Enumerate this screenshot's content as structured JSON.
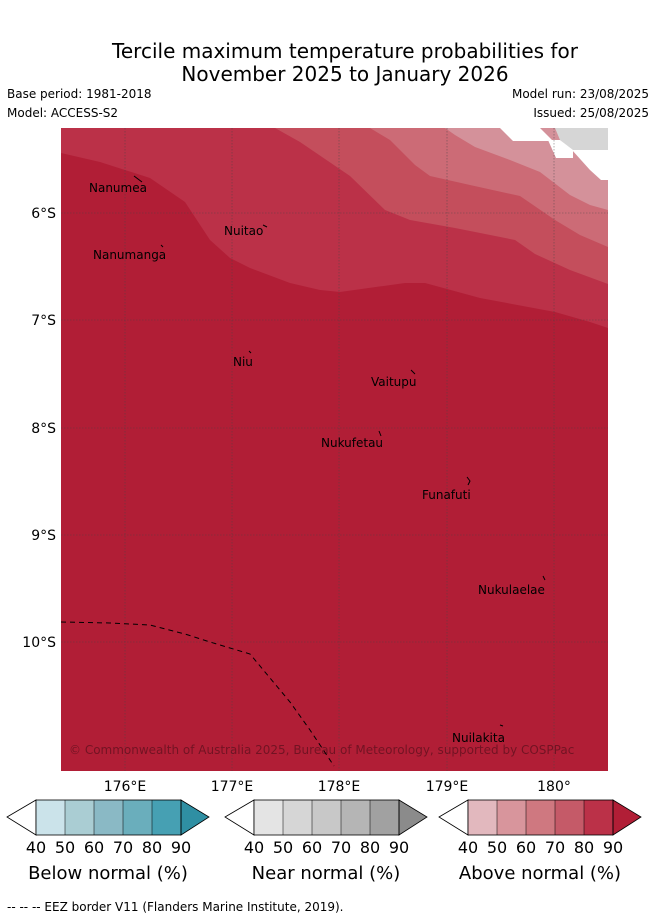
{
  "title": {
    "line1": "Tercile maximum temperature probabilities for",
    "line2": "November 2025 to January 2026"
  },
  "meta": {
    "base_period": "Base period: 1981-2018",
    "model": "Model: ACCESS-S2",
    "model_run": "Model run: 23/08/2025",
    "issued": "Issued: 25/08/2025"
  },
  "map": {
    "x_ticks": [
      "176°E",
      "177°E",
      "178°E",
      "179°E",
      "180°"
    ],
    "y_ticks": [
      "6°S",
      "7°S",
      "8°S",
      "9°S",
      "10°S"
    ],
    "places": [
      "Nanumea",
      "Nuitao",
      "Nanumanga",
      "Niu",
      "Vaitupu",
      "Nukufetau",
      "Funafuti",
      "Nukulaelae",
      "Nuilakita"
    ],
    "copyright": "© Commonwealth of Australia 2025, Bureau of Meteorology, supported by COSPPac",
    "fill_colors": {
      "above_90": "#b11e36",
      "above_80": "#bb3148",
      "above_70": "#c44e5c",
      "above_60": "#cc6b76",
      "above_50": "#d4919a",
      "near_50": "#d6d6d6",
      "white": "#ffffff"
    }
  },
  "colorbars": [
    {
      "label": "Below normal (%)",
      "ticks": [
        "40",
        "50",
        "60",
        "70",
        "80",
        "90"
      ],
      "colors": [
        "#ffffff",
        "#cbe3ea",
        "#aacdd3",
        "#8ab9c5",
        "#6aaebc",
        "#46a0b3",
        "#2f8fa3"
      ]
    },
    {
      "label": "Near normal (%)",
      "ticks": [
        "40",
        "50",
        "60",
        "70",
        "80",
        "90"
      ],
      "colors": [
        "#ffffff",
        "#e4e4e4",
        "#d6d6d6",
        "#c8c8c8",
        "#b5b5b5",
        "#a1a1a1",
        "#8b8b8b"
      ]
    },
    {
      "label": "Above normal (%)",
      "ticks": [
        "40",
        "50",
        "60",
        "70",
        "80",
        "90"
      ],
      "colors": [
        "#ffffff",
        "#e2b8be",
        "#d8959c",
        "#cf7880",
        "#c55a68",
        "#bb3148",
        "#b11e36"
      ]
    }
  ],
  "footer": "--  --  -- EEZ border V11 (Flanders Marine Institute, 2019)."
}
